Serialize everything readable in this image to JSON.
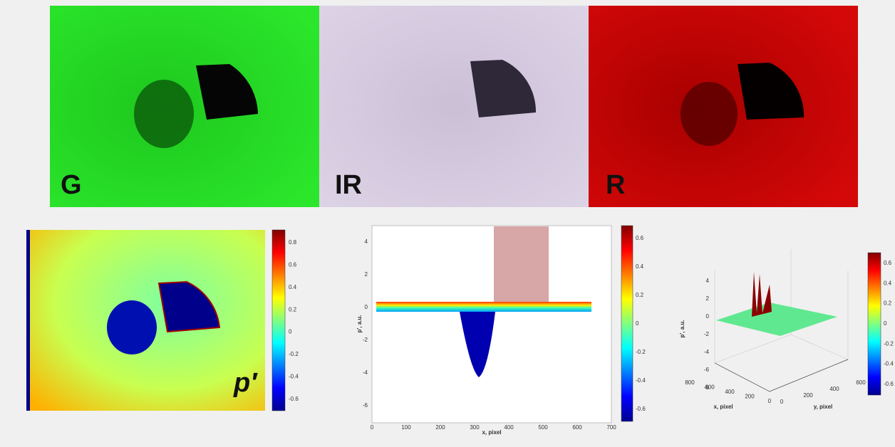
{
  "photos": [
    {
      "label": "G"
    },
    {
      "label": "IR"
    },
    {
      "label": "R"
    }
  ],
  "map": {
    "label": "p′",
    "colorbar_ticks": [
      0.8,
      0.6,
      0.4,
      0.2,
      0,
      -0.2,
      -0.4,
      -0.6
    ]
  },
  "profile": {
    "xlabel": "x, pixel",
    "ylabel": "p', a.u.",
    "xticks": [
      0,
      100,
      200,
      300,
      400,
      500,
      600,
      700
    ],
    "yticks": [
      4,
      2,
      0,
      -2,
      -4,
      -6
    ],
    "colorbar_ticks": [
      0.6,
      0.4,
      0.2,
      0,
      -0.2,
      -0.4,
      -0.6
    ]
  },
  "surface": {
    "xlabel": "x, pixel",
    "ylabel": "y, pixel",
    "zlabel": "p', a.u.",
    "zticks": [
      4,
      2,
      0,
      -2,
      -4,
      -6,
      -8
    ],
    "xticks": [
      800,
      600,
      400,
      200,
      0
    ],
    "yticks": [
      0,
      200,
      400,
      600
    ],
    "colorbar_ticks": [
      0.6,
      0.4,
      0.2,
      0,
      -0.2,
      -0.4,
      -0.6
    ]
  }
}
